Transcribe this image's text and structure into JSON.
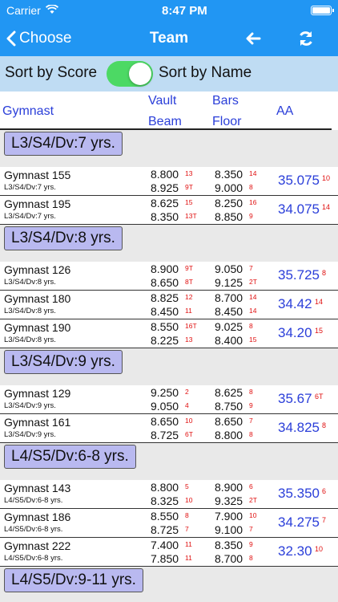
{
  "status": {
    "carrier": "Carrier",
    "time": "8:47 PM"
  },
  "nav": {
    "back_label": "Choose",
    "title": "Team"
  },
  "sort": {
    "by_score": "Sort by Score",
    "by_name": "Sort by Name",
    "toggle_on": true
  },
  "columns": {
    "gymnast": "Gymnast",
    "vault": "Vault",
    "beam": "Beam",
    "bars": "Bars",
    "floor": "Floor",
    "aa": "AA"
  },
  "colors": {
    "nav_blue": "#2196f3",
    "sort_bar": "#bfdcf3",
    "header_text": "#2a3ed9",
    "rank_red": "#e01010",
    "group_chip": "#b9b9f0",
    "toggle_green": "#4cd964"
  },
  "groups": [
    {
      "label": "L3/S4/Dv:7 yrs.",
      "rows": [
        {
          "name": "Gymnast 155",
          "division": "L3/S4/Dv:7 yrs.",
          "vault": "8.800",
          "vault_rank": "13",
          "bars": "8.350",
          "bars_rank": "14",
          "beam": "8.925",
          "beam_rank": "9T",
          "floor": "9.000",
          "floor_rank": "8",
          "aa": "35.075",
          "aa_rank": "10"
        },
        {
          "name": "Gymnast 195",
          "division": "L3/S4/Dv:7 yrs.",
          "vault": "8.625",
          "vault_rank": "15",
          "bars": "8.250",
          "bars_rank": "16",
          "beam": "8.350",
          "beam_rank": "13T",
          "floor": "8.850",
          "floor_rank": "9",
          "aa": "34.075",
          "aa_rank": "14"
        }
      ]
    },
    {
      "label": "L3/S4/Dv:8 yrs.",
      "rows": [
        {
          "name": "Gymnast 126",
          "division": "L3/S4/Dv:8 yrs.",
          "vault": "8.900",
          "vault_rank": "9T",
          "bars": "9.050",
          "bars_rank": "7",
          "beam": "8.650",
          "beam_rank": "8T",
          "floor": "9.125",
          "floor_rank": "2T",
          "aa": "35.725",
          "aa_rank": "8"
        },
        {
          "name": "Gymnast 180",
          "division": "L3/S4/Dv:8 yrs.",
          "vault": "8.825",
          "vault_rank": "12",
          "bars": "8.700",
          "bars_rank": "14",
          "beam": "8.450",
          "beam_rank": "11",
          "floor": "8.450",
          "floor_rank": "14",
          "aa": "34.42",
          "aa_rank": "14"
        },
        {
          "name": "Gymnast 190",
          "division": "L3/S4/Dv:8 yrs.",
          "vault": "8.550",
          "vault_rank": "16T",
          "bars": "9.025",
          "bars_rank": "8",
          "beam": "8.225",
          "beam_rank": "13",
          "floor": "8.400",
          "floor_rank": "15",
          "aa": "34.20",
          "aa_rank": "15"
        }
      ]
    },
    {
      "label": "L3/S4/Dv:9 yrs.",
      "rows": [
        {
          "name": "Gymnast 129",
          "division": "L3/S4/Dv:9 yrs.",
          "vault": "9.250",
          "vault_rank": "2",
          "bars": "8.625",
          "bars_rank": "8",
          "beam": "9.050",
          "beam_rank": "4",
          "floor": "8.750",
          "floor_rank": "9",
          "aa": "35.67",
          "aa_rank": "6T"
        },
        {
          "name": "Gymnast 161",
          "division": "L3/S4/Dv:9 yrs.",
          "vault": "8.650",
          "vault_rank": "10",
          "bars": "8.650",
          "bars_rank": "7",
          "beam": "8.725",
          "beam_rank": "6T",
          "floor": "8.800",
          "floor_rank": "8",
          "aa": "34.825",
          "aa_rank": "8"
        }
      ]
    },
    {
      "label": "L4/S5/Dv:6-8 yrs.",
      "rows": [
        {
          "name": "Gymnast 143",
          "division": "L4/S5/Dv:6-8 yrs.",
          "vault": "8.800",
          "vault_rank": "5",
          "bars": "8.900",
          "bars_rank": "6",
          "beam": "8.325",
          "beam_rank": "10",
          "floor": "9.325",
          "floor_rank": "2T",
          "aa": "35.350",
          "aa_rank": "6"
        },
        {
          "name": "Gymnast 186",
          "division": "L4/S5/Dv:6-8 yrs.",
          "vault": "8.550",
          "vault_rank": "8",
          "bars": "7.900",
          "bars_rank": "10",
          "beam": "8.725",
          "beam_rank": "7",
          "floor": "9.100",
          "floor_rank": "7",
          "aa": "34.275",
          "aa_rank": "7"
        },
        {
          "name": "Gymnast 222",
          "division": "L4/S5/Dv:6-8 yrs.",
          "vault": "7.400",
          "vault_rank": "11",
          "bars": "8.350",
          "bars_rank": "9",
          "beam": "7.850",
          "beam_rank": "11",
          "floor": "8.700",
          "floor_rank": "8",
          "aa": "32.30",
          "aa_rank": "10"
        }
      ]
    },
    {
      "label": "L4/S5/Dv:9-11 yrs.",
      "rows": []
    }
  ]
}
